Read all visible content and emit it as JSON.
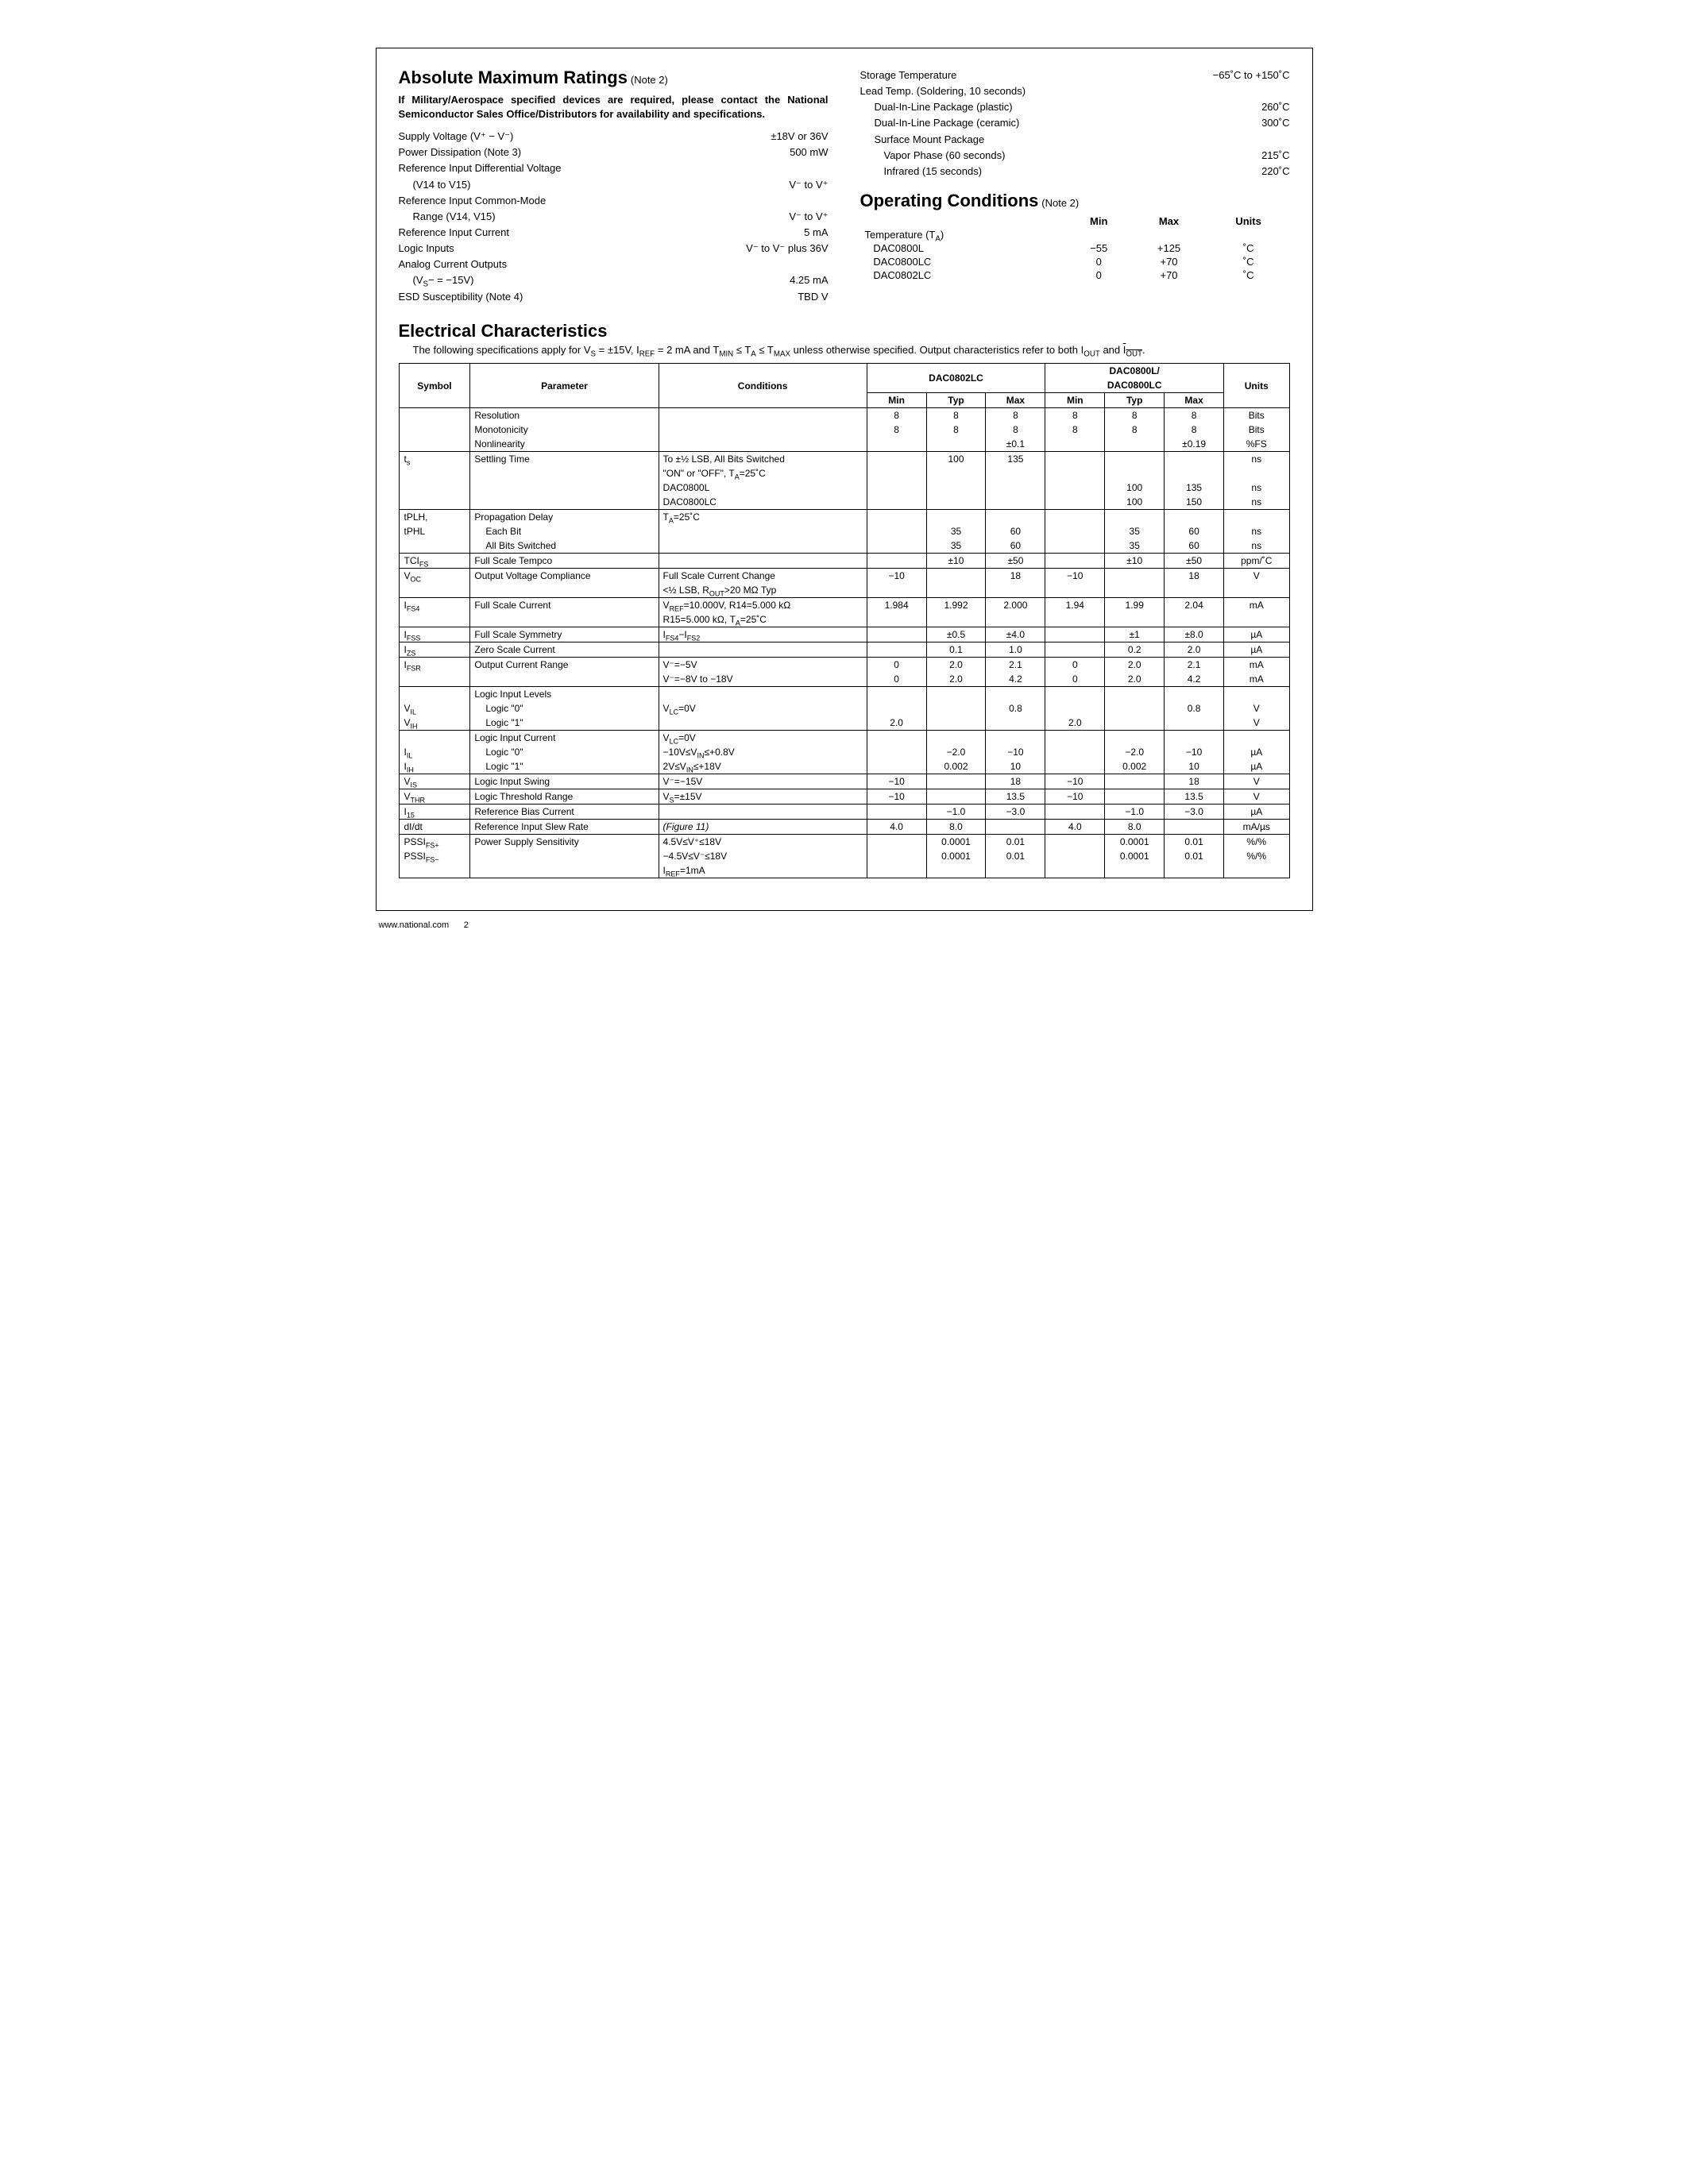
{
  "sections": {
    "amr_title": "Absolute Maximum Ratings",
    "amr_note": "(Note 2)",
    "military": "If Military/Aerospace specified devices are required, please contact the National Semiconductor Sales Office/Distributors for availability and specifications.",
    "op_title": "Operating Conditions",
    "op_note": "(Note 2)",
    "elec_title": "Electrical Characteristics",
    "elec_intro_a": "The following specifications apply for V",
    "elec_intro_b": " = ±15V, I",
    "elec_intro_c": " = 2 mA and T",
    "elec_intro_d": " ≤ T",
    "elec_intro_e": " ≤ T",
    "elec_intro_f": " unless otherwise specified. Output characteristics refer to both I",
    "elec_intro_g": " and ",
    "elec_intro_h": "."
  },
  "amr_left": [
    {
      "k": "Supply Voltage (V⁺ − V⁻)",
      "v": "±18V or 36V",
      "indent": 0
    },
    {
      "k": "Power Dissipation (Note 3)",
      "v": "500 mW",
      "indent": 0
    },
    {
      "k": "Reference Input Differential Voltage",
      "v": "",
      "indent": 0
    },
    {
      "k": "(V14 to V15)",
      "v": "V⁻ to V⁺",
      "indent": 1
    },
    {
      "k": "Reference Input Common-Mode",
      "v": "",
      "indent": 0
    },
    {
      "k": "Range (V14, V15)",
      "v": "V⁻ to V⁺",
      "indent": 1
    },
    {
      "k": "Reference Input Current",
      "v": "5 mA",
      "indent": 0
    },
    {
      "k": "Logic Inputs",
      "v": "V⁻ to V⁻ plus 36V",
      "indent": 0
    },
    {
      "k": "Analog Current Outputs",
      "v": "",
      "indent": 0
    },
    {
      "k": "(V_S− = −15V)",
      "v": "4.25 mA",
      "indent": 1
    },
    {
      "k": "ESD Susceptibility (Note 4)",
      "v": "TBD V",
      "indent": 0
    }
  ],
  "amr_right": [
    {
      "k": "Storage Temperature",
      "v": "−65˚C to +150˚C",
      "indent": 0
    },
    {
      "k": "Lead Temp. (Soldering, 10 seconds)",
      "v": "",
      "indent": 0
    },
    {
      "k": "Dual-In-Line Package (plastic)",
      "v": "260˚C",
      "indent": 1
    },
    {
      "k": "Dual-In-Line Package (ceramic)",
      "v": "300˚C",
      "indent": 1
    },
    {
      "k": "Surface Mount Package",
      "v": "",
      "indent": 1
    },
    {
      "k": "Vapor Phase (60 seconds)",
      "v": "215˚C",
      "indent": 2
    },
    {
      "k": "Infrared (15 seconds)",
      "v": "220˚C",
      "indent": 2
    }
  ],
  "op_headers": [
    "",
    "Min",
    "Max",
    "Units"
  ],
  "op_rows": [
    [
      "Temperature (T_A)",
      "",
      "",
      ""
    ],
    [
      "  DAC0800L",
      "−55",
      "+125",
      "˚C"
    ],
    [
      "  DAC0800LC",
      "0",
      "+70",
      "˚C"
    ],
    [
      "  DAC0802LC",
      "0",
      "+70",
      "˚C"
    ]
  ],
  "elec": {
    "group_a": "DAC0802LC",
    "group_b1": "DAC0800L/",
    "group_b2": "DAC0800LC",
    "col_sym": "Symbol",
    "col_param": "Parameter",
    "col_cond": "Conditions",
    "col_min": "Min",
    "col_typ": "Typ",
    "col_max": "Max",
    "col_units": "Units",
    "col_widths": {
      "sym": "72",
      "param": "190",
      "cond": "210",
      "num": "60",
      "units": "66"
    }
  },
  "rows": [
    {
      "g": 1,
      "sym": "",
      "param": "Resolution",
      "cond": "",
      "a": [
        "8",
        "8",
        "8"
      ],
      "b": [
        "8",
        "8",
        "8"
      ],
      "u": "Bits"
    },
    {
      "g": 1,
      "sym": "",
      "param": "Monotonicity",
      "cond": "",
      "a": [
        "8",
        "8",
        "8"
      ],
      "b": [
        "8",
        "8",
        "8"
      ],
      "u": "Bits"
    },
    {
      "g": 1,
      "sym": "",
      "param": "Nonlinearity",
      "cond": "",
      "a": [
        "",
        "",
        "±0.1"
      ],
      "b": [
        "",
        "",
        "±0.19"
      ],
      "u": "%FS"
    },
    {
      "g": 2,
      "sym": "t_s",
      "param": "Settling Time",
      "cond": "To ±½ LSB, All Bits Switched",
      "a": [
        "",
        "100",
        "135"
      ],
      "b": [
        "",
        "",
        ""
      ],
      "u": "ns"
    },
    {
      "g": 2,
      "sym": "",
      "param": "",
      "cond": "\"ON\" or \"OFF\", T_A=25˚C",
      "a": [
        "",
        "",
        ""
      ],
      "b": [
        "",
        "",
        ""
      ],
      "u": ""
    },
    {
      "g": 2,
      "sym": "",
      "param": "",
      "cond": "DAC0800L",
      "a": [
        "",
        "",
        ""
      ],
      "b": [
        "",
        "100",
        "135"
      ],
      "u": "ns"
    },
    {
      "g": 2,
      "sym": "",
      "param": "",
      "cond": "DAC0800LC",
      "a": [
        "",
        "",
        ""
      ],
      "b": [
        "",
        "100",
        "150"
      ],
      "u": "ns"
    },
    {
      "g": 3,
      "sym": "tPLH,",
      "param": "Propagation Delay",
      "cond": "T_A=25˚C",
      "a": [
        "",
        "",
        ""
      ],
      "b": [
        "",
        "",
        ""
      ],
      "u": ""
    },
    {
      "g": 3,
      "sym": "tPHL",
      "param": "Each Bit",
      "param_indent": 1,
      "cond": "",
      "a": [
        "",
        "35",
        "60"
      ],
      "b": [
        "",
        "35",
        "60"
      ],
      "u": "ns"
    },
    {
      "g": 3,
      "sym": "",
      "param": "All Bits Switched",
      "param_indent": 1,
      "cond": "",
      "a": [
        "",
        "35",
        "60"
      ],
      "b": [
        "",
        "35",
        "60"
      ],
      "u": "ns"
    },
    {
      "g": 4,
      "sym": "TCI_FS",
      "param": "Full Scale Tempco",
      "cond": "",
      "a": [
        "",
        "±10",
        "±50"
      ],
      "b": [
        "",
        "±10",
        "±50"
      ],
      "u": "ppm/˚C"
    },
    {
      "g": 5,
      "sym": "V_OC",
      "param": "Output Voltage Compliance",
      "cond": "Full Scale Current Change",
      "a": [
        "−10",
        "",
        "18"
      ],
      "b": [
        "−10",
        "",
        "18"
      ],
      "u": "V"
    },
    {
      "g": 5,
      "sym": "",
      "param": "",
      "cond": "<½ LSB, R_OUT>20 MΩ Typ",
      "a": [
        "",
        "",
        ""
      ],
      "b": [
        "",
        "",
        ""
      ],
      "u": ""
    },
    {
      "g": 6,
      "sym": "I_FS4",
      "param": "Full Scale Current",
      "cond": "V_REF=10.000V, R14=5.000 kΩ",
      "a": [
        "1.984",
        "1.992",
        "2.000"
      ],
      "b": [
        "1.94",
        "1.99",
        "2.04"
      ],
      "u": "mA"
    },
    {
      "g": 6,
      "sym": "",
      "param": "",
      "cond": "R15=5.000 kΩ, T_A=25˚C",
      "a": [
        "",
        "",
        ""
      ],
      "b": [
        "",
        "",
        ""
      ],
      "u": ""
    },
    {
      "g": 7,
      "sym": "I_FSS",
      "param": "Full Scale Symmetry",
      "cond": "I_FS4−I_FS2",
      "a": [
        "",
        "±0.5",
        "±4.0"
      ],
      "b": [
        "",
        "±1",
        "±8.0"
      ],
      "u": "µA"
    },
    {
      "g": 8,
      "sym": "I_ZS",
      "param": "Zero Scale Current",
      "cond": "",
      "a": [
        "",
        "0.1",
        "1.0"
      ],
      "b": [
        "",
        "0.2",
        "2.0"
      ],
      "u": "µA"
    },
    {
      "g": 9,
      "sym": "I_FSR",
      "param": "Output Current Range",
      "cond": "V⁻=−5V",
      "a": [
        "0",
        "2.0",
        "2.1"
      ],
      "b": [
        "0",
        "2.0",
        "2.1"
      ],
      "u": "mA"
    },
    {
      "g": 9,
      "sym": "",
      "param": "",
      "cond": "V⁻=−8V to −18V",
      "a": [
        "0",
        "2.0",
        "4.2"
      ],
      "b": [
        "0",
        "2.0",
        "4.2"
      ],
      "u": "mA"
    },
    {
      "g": 10,
      "sym": "",
      "param": "Logic Input Levels",
      "cond": "",
      "a": [
        "",
        "",
        ""
      ],
      "b": [
        "",
        "",
        ""
      ],
      "u": ""
    },
    {
      "g": 10,
      "sym": "V_IL",
      "param": "Logic \"0\"",
      "param_indent": 1,
      "cond": "V_LC=0V",
      "a": [
        "",
        "",
        "0.8"
      ],
      "b": [
        "",
        "",
        "0.8"
      ],
      "u": "V"
    },
    {
      "g": 10,
      "sym": "V_IH",
      "param": "Logic \"1\"",
      "param_indent": 1,
      "cond": "",
      "a": [
        "2.0",
        "",
        ""
      ],
      "b": [
        "2.0",
        "",
        ""
      ],
      "u": "V"
    },
    {
      "g": 11,
      "sym": "",
      "param": "Logic Input Current",
      "cond": "V_LC=0V",
      "a": [
        "",
        "",
        ""
      ],
      "b": [
        "",
        "",
        ""
      ],
      "u": ""
    },
    {
      "g": 11,
      "sym": "I_IL",
      "param": "Logic \"0\"",
      "param_indent": 1,
      "cond": "−10V≤V_IN≤+0.8V",
      "a": [
        "",
        "−2.0",
        "−10"
      ],
      "b": [
        "",
        "−2.0",
        "−10"
      ],
      "u": "µA"
    },
    {
      "g": 11,
      "sym": "I_IH",
      "param": "Logic \"1\"",
      "param_indent": 1,
      "cond": "2V≤V_IN≤+18V",
      "a": [
        "",
        "0.002",
        "10"
      ],
      "b": [
        "",
        "0.002",
        "10"
      ],
      "u": "µA"
    },
    {
      "g": 12,
      "sym": "V_IS",
      "param": "Logic Input Swing",
      "cond": "V⁻=−15V",
      "a": [
        "−10",
        "",
        "18"
      ],
      "b": [
        "−10",
        "",
        "18"
      ],
      "u": "V"
    },
    {
      "g": 13,
      "sym": "V_THR",
      "param": "Logic Threshold Range",
      "cond": "V_S=±15V",
      "a": [
        "−10",
        "",
        "13.5"
      ],
      "b": [
        "−10",
        "",
        "13.5"
      ],
      "u": "V"
    },
    {
      "g": 14,
      "sym": "I_15",
      "param": "Reference Bias Current",
      "cond": "",
      "a": [
        "",
        "−1.0",
        "−3.0"
      ],
      "b": [
        "",
        "−1.0",
        "−3.0"
      ],
      "u": "µA"
    },
    {
      "g": 15,
      "sym": "dI/dt",
      "param": "Reference Input Slew Rate",
      "cond": "(Figure 11)",
      "cond_italic": 1,
      "a": [
        "4.0",
        "8.0",
        ""
      ],
      "b": [
        "4.0",
        "8.0",
        ""
      ],
      "u": "mA/µs"
    },
    {
      "g": 16,
      "sym": "PSSI_FS+",
      "param": "Power Supply Sensitivity",
      "cond": "4.5V≤V⁺≤18V",
      "a": [
        "",
        "0.0001",
        "0.01"
      ],
      "b": [
        "",
        "0.0001",
        "0.01"
      ],
      "u": "%/%"
    },
    {
      "g": 16,
      "sym": "PSSI_FS−",
      "param": "",
      "cond": "−4.5V≤V⁻≤18V",
      "a": [
        "",
        "0.0001",
        "0.01"
      ],
      "b": [
        "",
        "0.0001",
        "0.01"
      ],
      "u": "%/%"
    },
    {
      "g": 16,
      "sym": "",
      "param": "",
      "cond": "I_REF=1mA",
      "a": [
        "",
        "",
        ""
      ],
      "b": [
        "",
        "",
        ""
      ],
      "u": ""
    }
  ],
  "footer": {
    "url": "www.national.com",
    "page": "2"
  }
}
